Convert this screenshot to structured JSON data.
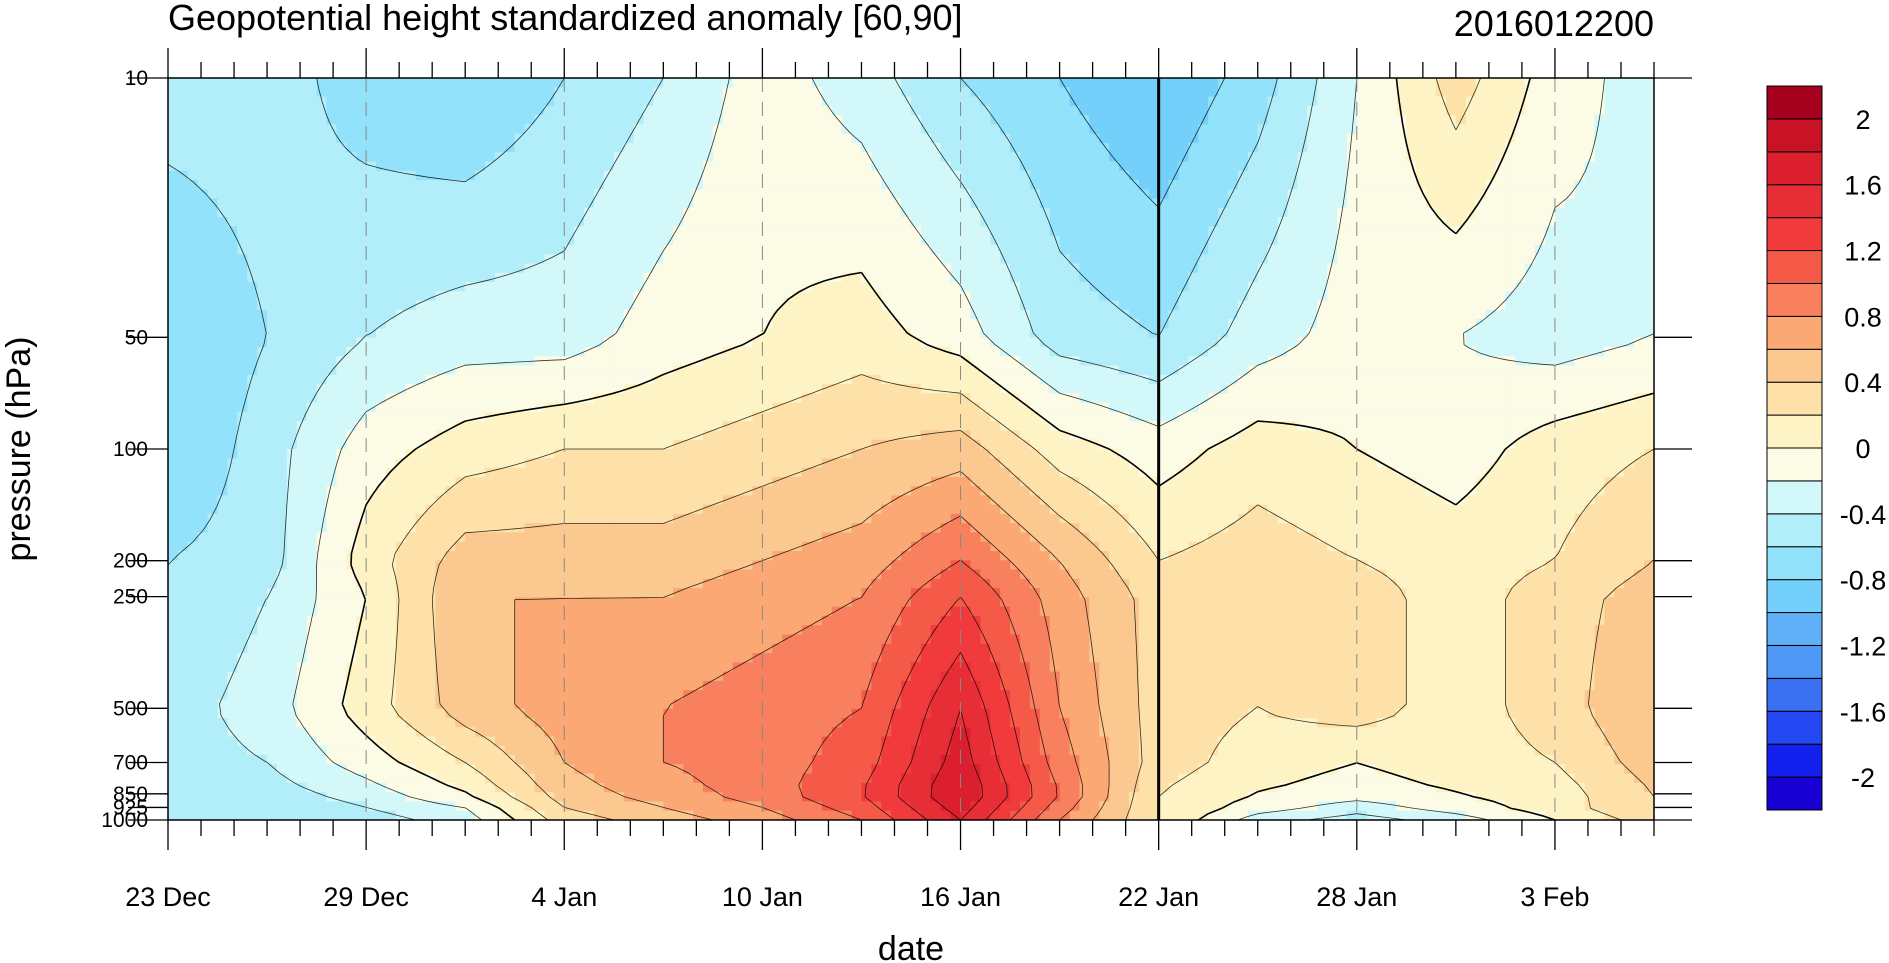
{
  "chart_data": {
    "type": "heatmap",
    "title": "Geopotential height standardized anomaly [60,90]",
    "subtitle": "2016012200",
    "xlabel": "date",
    "ylabel": "pressure (hPa)",
    "x_ticks": [
      "23 Dec",
      "29 Dec",
      "4 Jan",
      "10 Jan",
      "16 Jan",
      "22 Jan",
      "28 Jan",
      "3 Feb"
    ],
    "y_ticks": [
      "10",
      "50",
      "100",
      "200",
      "250",
      "500",
      "700",
      "850",
      "925",
      "1000"
    ],
    "y_scale": "log",
    "ylim": [
      1000,
      10
    ],
    "marker_line": "22 Jan",
    "x_days": [
      0,
      3,
      6,
      9,
      12,
      15,
      18,
      21,
      24,
      27,
      30,
      33,
      36,
      39,
      42,
      45
    ],
    "pressure_levels": [
      1000,
      925,
      850,
      700,
      500,
      250,
      200,
      100,
      50,
      10
    ],
    "values": [
      [
        -0.4,
        -0.6,
        -0.5,
        -0.3,
        0.3,
        0.5,
        0.7,
        1.0,
        1.6,
        0.8,
        0.2,
        -0.3,
        -0.5,
        -0.3,
        0.0,
        0.3
      ],
      [
        -0.4,
        -0.6,
        -0.4,
        -0.2,
        0.4,
        0.6,
        0.8,
        1.1,
        1.7,
        0.9,
        0.2,
        -0.1,
        -0.3,
        -0.1,
        0.1,
        0.4
      ],
      [
        -0.4,
        -0.5,
        -0.3,
        0.0,
        0.5,
        0.7,
        0.9,
        1.2,
        1.8,
        1.0,
        0.2,
        0.0,
        -0.1,
        0.0,
        0.1,
        0.4
      ],
      [
        -0.5,
        -0.4,
        -0.1,
        0.2,
        0.6,
        0.8,
        0.9,
        1.1,
        1.7,
        0.9,
        0.3,
        0.1,
        0.0,
        0.1,
        0.2,
        0.5
      ],
      [
        -0.5,
        -0.3,
        0.1,
        0.5,
        0.7,
        0.8,
        0.9,
        1.0,
        1.6,
        0.8,
        0.3,
        0.2,
        0.3,
        0.1,
        0.3,
        0.6
      ],
      [
        -0.6,
        -0.4,
        0.0,
        0.6,
        0.6,
        0.6,
        0.7,
        0.8,
        1.2,
        0.7,
        0.3,
        0.3,
        0.3,
        0.1,
        0.3,
        0.5
      ],
      [
        -0.6,
        -0.5,
        0.1,
        0.5,
        0.5,
        0.5,
        0.6,
        0.7,
        1.0,
        0.6,
        0.2,
        0.3,
        0.2,
        0.1,
        0.2,
        0.4
      ],
      [
        -0.8,
        -0.5,
        -0.1,
        0.1,
        0.2,
        0.2,
        0.3,
        0.4,
        0.5,
        0.1,
        -0.1,
        0.1,
        0.0,
        -0.1,
        0.1,
        0.2
      ],
      [
        -0.8,
        -0.6,
        -0.4,
        -0.3,
        -0.3,
        -0.1,
        0.0,
        0.1,
        -0.1,
        -0.5,
        -0.6,
        -0.3,
        -0.1,
        -0.2,
        -0.3,
        -0.2
      ],
      [
        -0.5,
        -0.5,
        -0.7,
        -0.8,
        -0.6,
        -0.4,
        -0.1,
        -0.3,
        -0.6,
        -0.8,
        -1.0,
        -0.7,
        -0.2,
        0.3,
        -0.1,
        -0.3
      ]
    ],
    "colorbar": {
      "labels": [
        "2",
        "1.6",
        "1.2",
        "0.8",
        "0.4",
        "0",
        "-0.4",
        "-0.8",
        "-1.2",
        "-1.6",
        "-2"
      ],
      "bounds": [
        -2.2,
        -2.0,
        -1.8,
        -1.6,
        -1.4,
        -1.2,
        -1.0,
        -0.8,
        -0.6,
        -0.4,
        -0.2,
        0.0,
        0.2,
        0.4,
        0.6,
        0.8,
        1.0,
        1.2,
        1.4,
        1.6,
        1.8,
        2.0,
        2.2
      ],
      "colors": [
        "#1800d2",
        "#1420ee",
        "#2648f2",
        "#3a70f2",
        "#4f98f5",
        "#5fb0f8",
        "#72d0fb",
        "#92e2fb",
        "#b2eefa",
        "#d2f8fa",
        "#fcfbe6",
        "#fdf3c4",
        "#fde1a8",
        "#fbc88f",
        "#fba874",
        "#f8805e",
        "#f55a48",
        "#f03a3c",
        "#e72e37",
        "#dc1f2f",
        "#c81326",
        "#a5001e"
      ]
    }
  }
}
